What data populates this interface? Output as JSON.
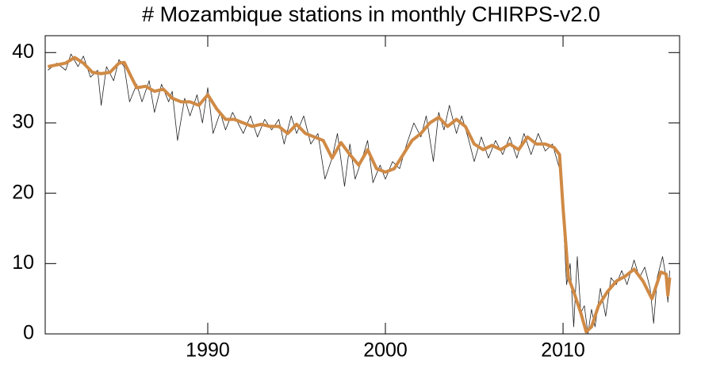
{
  "chart_data": {
    "type": "line",
    "title": "# Mozambique stations in monthly CHIRPS-v2.0",
    "xlim": [
      1980.85,
      2016.56
    ],
    "xticks": [
      1990,
      2000,
      2010
    ],
    "ylim": [
      0,
      42.4
    ],
    "yticks": [
      0,
      10,
      20,
      30,
      40
    ],
    "series": [
      {
        "color": "#222222",
        "linewidth": 0.8,
        "x": [
          1981,
          1981.5,
          1982,
          1982.3,
          1982.7,
          1983,
          1983.4,
          1983.8,
          1984,
          1984.3,
          1984.7,
          1985,
          1985.3,
          1985.6,
          1986,
          1986.3,
          1986.7,
          1987,
          1987.4,
          1987.8,
          1988,
          1988.3,
          1988.7,
          1989,
          1989.4,
          1989.7,
          1990,
          1990.3,
          1990.7,
          1991,
          1991.4,
          1992,
          1992.4,
          1992.8,
          1993.2,
          1993.6,
          1994,
          1994.3,
          1994.7,
          1995,
          1995.4,
          1995.8,
          1996.2,
          1996.6,
          1997,
          1997.3,
          1997.7,
          1998,
          1998.3,
          1998.7,
          1999,
          1999.3,
          1999.7,
          2000,
          2000.4,
          2000.8,
          2001.2,
          2001.6,
          2002,
          2002.3,
          2002.7,
          2003,
          2003.3,
          2003.6,
          2004,
          2004.3,
          2004.7,
          2005,
          2005.4,
          2005.8,
          2006.2,
          2006.6,
          2007,
          2007.4,
          2007.8,
          2008.2,
          2008.6,
          2009,
          2009.4,
          2009.8,
          2010,
          2010.2,
          2010.4,
          2010.6,
          2010.8,
          2011,
          2011.2,
          2011.4,
          2011.6,
          2011.8,
          2012.1,
          2012.4,
          2012.7,
          2013,
          2013.3,
          2013.6,
          2014,
          2014.3,
          2014.6,
          2014.9,
          2015.1,
          2015.3,
          2015.6,
          2015.8,
          2015.9,
          2016
        ],
        "values": [
          37.5,
          38.5,
          37.5,
          39.8,
          38,
          39.5,
          36.5,
          37.5,
          32.5,
          38,
          36,
          39,
          38,
          33,
          35.5,
          33,
          36,
          31.5,
          35.5,
          33,
          34.5,
          27.5,
          33.5,
          31,
          34,
          30,
          35,
          28.5,
          31.5,
          29,
          31.5,
          28.5,
          31,
          28,
          30.5,
          29,
          30.5,
          27,
          31,
          28.5,
          31,
          27,
          28.5,
          22,
          25,
          28.5,
          21,
          27,
          22,
          25,
          27.5,
          21.5,
          24,
          22,
          24.5,
          23.5,
          27,
          30,
          28,
          31,
          24.5,
          31.5,
          29,
          32.5,
          28.5,
          31,
          27.5,
          24.5,
          28,
          25,
          27.5,
          25.5,
          28,
          25,
          28.5,
          25.5,
          28.5,
          26,
          27,
          23.5,
          17,
          7,
          10,
          1,
          11,
          3,
          4,
          0,
          3.5,
          1,
          6.5,
          2.5,
          8,
          7,
          9,
          7,
          10.5,
          8,
          9.5,
          6.5,
          1.5,
          8,
          11,
          8,
          4.5,
          9
        ]
      },
      {
        "color": "#d08a45",
        "linewidth": 4,
        "x": [
          1981,
          1982,
          1982.5,
          1983,
          1983.5,
          1984,
          1984.5,
          1985,
          1985.3,
          1985.7,
          1986,
          1986.5,
          1987,
          1987.5,
          1988,
          1988.5,
          1989,
          1989.5,
          1990,
          1990.5,
          1991,
          1991.5,
          1992,
          1992.5,
          1993,
          1993.5,
          1994,
          1994.5,
          1995,
          1995.5,
          1996,
          1996.5,
          1997,
          1997.5,
          1998,
          1998.5,
          1999,
          1999.5,
          2000,
          2000.5,
          2001,
          2001.5,
          2002,
          2002.5,
          2003,
          2003.5,
          2004,
          2004.5,
          2005,
          2005.5,
          2006,
          2006.5,
          2007,
          2007.5,
          2008,
          2008.5,
          2009,
          2009.5,
          2009.8,
          2010,
          2010.3,
          2010.6,
          2011,
          2011.3,
          2011.6,
          2012,
          2012.5,
          2013,
          2013.5,
          2014,
          2014.5,
          2015,
          2015.5,
          2015.8,
          2015.9,
          2016
        ],
        "values": [
          38,
          38.5,
          39.3,
          38.5,
          37.2,
          37,
          37.2,
          38.5,
          38.6,
          36.5,
          35,
          35.2,
          34.5,
          34.8,
          33.5,
          33,
          33,
          32.5,
          34,
          32,
          30.5,
          30.5,
          30,
          29.5,
          29.8,
          29.5,
          29.5,
          28.5,
          29.8,
          28.5,
          28,
          27.5,
          25,
          27.2,
          25.5,
          24,
          26.2,
          23.5,
          23,
          23.5,
          25.5,
          27.5,
          28.5,
          30,
          30.8,
          29.5,
          30.5,
          29.5,
          27,
          26.2,
          26.8,
          26.2,
          27,
          26.2,
          28,
          27,
          27,
          26.5,
          25.5,
          18,
          8,
          6,
          3,
          0.3,
          1,
          4,
          6,
          7.5,
          8.2,
          9.2,
          7.5,
          5,
          8.8,
          8.5,
          5.5,
          8
        ]
      }
    ]
  }
}
